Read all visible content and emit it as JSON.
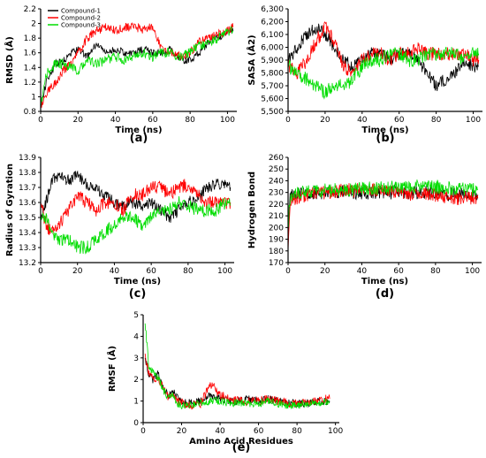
{
  "colors": {
    "compound1": "#000000",
    "compound2": "#ff0000",
    "compound3": "#00dd00"
  },
  "chart_data": [
    {
      "id": "a",
      "type": "line",
      "panel_label": "(a)",
      "xlabel": "Time (ns)",
      "ylabel": "RMSD (Å)",
      "xlim": [
        0,
        105
      ],
      "ylim": [
        0.8,
        2.2
      ],
      "xticks": [
        0,
        20,
        40,
        60,
        80,
        100
      ],
      "yticks": [
        0.8,
        1,
        1.2,
        1.4,
        1.6,
        1.8,
        2,
        2.2
      ],
      "ytick_labels": [
        "0.8",
        "1",
        "1.2",
        "1.4",
        "1.6",
        "1.8",
        "2",
        "2.2"
      ],
      "legend": "top-left",
      "grid": false,
      "noise": [
        0.05,
        0.06,
        0.07
      ],
      "series": [
        {
          "name": "Compound-1",
          "color": "#000000",
          "x": [
            0,
            3,
            8,
            12,
            16,
            20,
            25,
            30,
            35,
            40,
            45,
            50,
            55,
            60,
            65,
            70,
            75,
            80,
            85,
            90,
            95,
            100,
            103
          ],
          "y": [
            0.85,
            1.2,
            1.45,
            1.48,
            1.6,
            1.65,
            1.55,
            1.72,
            1.6,
            1.65,
            1.6,
            1.6,
            1.65,
            1.6,
            1.6,
            1.65,
            1.5,
            1.5,
            1.6,
            1.75,
            1.8,
            1.9,
            1.9
          ]
        },
        {
          "name": "Compound-2",
          "color": "#ff0000",
          "x": [
            0,
            3,
            8,
            12,
            16,
            20,
            25,
            30,
            35,
            40,
            45,
            50,
            55,
            60,
            65,
            70,
            75,
            80,
            85,
            90,
            95,
            100,
            103
          ],
          "y": [
            0.85,
            1.05,
            1.2,
            1.35,
            1.45,
            1.6,
            1.8,
            1.9,
            1.95,
            1.9,
            1.95,
            1.95,
            1.92,
            1.95,
            1.65,
            1.6,
            1.55,
            1.6,
            1.75,
            1.8,
            1.85,
            1.9,
            1.95
          ]
        },
        {
          "name": "Compound-3",
          "color": "#00dd00",
          "x": [
            0,
            3,
            8,
            12,
            16,
            20,
            25,
            30,
            35,
            40,
            45,
            50,
            55,
            60,
            65,
            70,
            75,
            80,
            85,
            90,
            95,
            100,
            103
          ],
          "y": [
            0.85,
            1.3,
            1.45,
            1.45,
            1.4,
            1.35,
            1.5,
            1.45,
            1.5,
            1.55,
            1.5,
            1.55,
            1.6,
            1.55,
            1.6,
            1.6,
            1.55,
            1.6,
            1.7,
            1.75,
            1.8,
            1.9,
            1.9
          ]
        }
      ]
    },
    {
      "id": "b",
      "type": "line",
      "panel_label": "(b)",
      "xlabel": "Time (ns)",
      "ylabel": "SASA (Å2)",
      "xlim": [
        0,
        105
      ],
      "ylim": [
        5500,
        6300
      ],
      "xticks": [
        0,
        20,
        40,
        60,
        80,
        100
      ],
      "yticks": [
        5500,
        5600,
        5700,
        5800,
        5900,
        6000,
        6100,
        6200,
        6300
      ],
      "ytick_labels": [
        "5,500",
        "5,600",
        "5,700",
        "5,800",
        "5,900",
        "6,000",
        "6,100",
        "6,200",
        "6,300"
      ],
      "grid": false,
      "noise": [
        50,
        55,
        55
      ],
      "series": [
        {
          "name": "Compound-1",
          "color": "#000000",
          "x": [
            0,
            5,
            10,
            15,
            20,
            25,
            30,
            35,
            40,
            45,
            50,
            55,
            60,
            65,
            70,
            75,
            80,
            85,
            90,
            95,
            100,
            103
          ],
          "y": [
            5900,
            6000,
            6100,
            6150,
            6100,
            6000,
            5900,
            5850,
            5900,
            5950,
            5950,
            5900,
            5950,
            5950,
            5900,
            5800,
            5700,
            5750,
            5800,
            5900,
            5850,
            5850
          ]
        },
        {
          "name": "Compound-2",
          "color": "#ff0000",
          "x": [
            0,
            5,
            10,
            15,
            20,
            25,
            30,
            35,
            40,
            45,
            50,
            55,
            60,
            65,
            70,
            75,
            80,
            85,
            90,
            95,
            100,
            103
          ],
          "y": [
            5850,
            5800,
            5900,
            6050,
            6150,
            6050,
            5850,
            5800,
            5900,
            5950,
            5950,
            5900,
            5950,
            5950,
            6000,
            5950,
            5950,
            5950,
            5950,
            5950,
            5900,
            5900
          ]
        },
        {
          "name": "Compound-3",
          "color": "#00dd00",
          "x": [
            0,
            5,
            10,
            15,
            20,
            25,
            30,
            35,
            40,
            45,
            50,
            55,
            60,
            65,
            70,
            75,
            80,
            85,
            90,
            95,
            100,
            103
          ],
          "y": [
            5850,
            5800,
            5750,
            5700,
            5650,
            5700,
            5700,
            5750,
            5850,
            5900,
            5900,
            5950,
            5950,
            5900,
            5900,
            5950,
            5950,
            5950,
            5950,
            5900,
            5950,
            5950
          ]
        }
      ]
    },
    {
      "id": "c",
      "type": "line",
      "panel_label": "(c)",
      "xlabel": "Time (ns)",
      "ylabel": "Radius of Gyration",
      "xlim": [
        0,
        105
      ],
      "ylim": [
        13.2,
        13.9
      ],
      "xticks": [
        0,
        20,
        40,
        60,
        80,
        100
      ],
      "yticks": [
        13.2,
        13.3,
        13.4,
        13.5,
        13.6,
        13.7,
        13.8,
        13.9
      ],
      "ytick_labels": [
        "13.2",
        "13.3",
        "13.4",
        "13.5",
        "13.6",
        "13.7",
        "13.8",
        "13.9"
      ],
      "grid": false,
      "noise": [
        0.04,
        0.045,
        0.045
      ],
      "series": [
        {
          "name": "Compound-1",
          "color": "#000000",
          "x": [
            0,
            3,
            6,
            10,
            15,
            20,
            25,
            30,
            35,
            40,
            45,
            50,
            55,
            60,
            65,
            70,
            75,
            80,
            85,
            90,
            95,
            100,
            103
          ],
          "y": [
            13.5,
            13.6,
            13.75,
            13.78,
            13.75,
            13.78,
            13.72,
            13.7,
            13.65,
            13.6,
            13.58,
            13.6,
            13.58,
            13.6,
            13.55,
            13.5,
            13.55,
            13.6,
            13.62,
            13.7,
            13.72,
            13.72,
            13.7
          ]
        },
        {
          "name": "Compound-2",
          "color": "#ff0000",
          "x": [
            0,
            3,
            6,
            10,
            15,
            20,
            25,
            30,
            35,
            40,
            45,
            50,
            55,
            60,
            65,
            70,
            75,
            80,
            85,
            90,
            95,
            100,
            103
          ],
          "y": [
            13.6,
            13.45,
            13.4,
            13.45,
            13.55,
            13.65,
            13.6,
            13.55,
            13.6,
            13.6,
            13.55,
            13.65,
            13.65,
            13.7,
            13.7,
            13.65,
            13.7,
            13.72,
            13.65,
            13.6,
            13.6,
            13.6,
            13.6
          ]
        },
        {
          "name": "Compound-3",
          "color": "#00dd00",
          "x": [
            0,
            3,
            6,
            10,
            15,
            20,
            25,
            30,
            35,
            40,
            45,
            50,
            55,
            60,
            65,
            70,
            75,
            80,
            85,
            90,
            95,
            100,
            103
          ],
          "y": [
            13.5,
            13.5,
            13.4,
            13.35,
            13.35,
            13.3,
            13.3,
            13.35,
            13.4,
            13.45,
            13.5,
            13.5,
            13.45,
            13.5,
            13.55,
            13.55,
            13.6,
            13.58,
            13.55,
            13.55,
            13.55,
            13.6,
            13.58
          ]
        }
      ]
    },
    {
      "id": "d",
      "type": "line",
      "panel_label": "(d)",
      "xlabel": "Time (ns)",
      "ylabel": "Hydrogen Bond",
      "xlim": [
        0,
        105
      ],
      "ylim": [
        170,
        260
      ],
      "xticks": [
        0,
        20,
        40,
        60,
        80,
        100
      ],
      "yticks": [
        170,
        180,
        190,
        200,
        210,
        220,
        230,
        240,
        250,
        260
      ],
      "ytick_labels": [
        "170",
        "180",
        "190",
        "200",
        "210",
        "220",
        "230",
        "240",
        "250",
        "260"
      ],
      "grid": false,
      "noise": [
        6,
        6,
        6
      ],
      "series": [
        {
          "name": "Compound-1",
          "color": "#000000",
          "x": [
            0,
            1,
            3,
            10,
            20,
            30,
            40,
            50,
            60,
            70,
            80,
            90,
            100,
            103
          ],
          "y": [
            185,
            225,
            228,
            230,
            230,
            230,
            230,
            230,
            230,
            230,
            230,
            228,
            228,
            228
          ]
        },
        {
          "name": "Compound-2",
          "color": "#ff0000",
          "x": [
            0,
            1,
            3,
            10,
            20,
            30,
            40,
            50,
            60,
            70,
            80,
            90,
            100,
            103
          ],
          "y": [
            180,
            222,
            225,
            228,
            230,
            232,
            232,
            232,
            230,
            228,
            228,
            225,
            225,
            225
          ]
        },
        {
          "name": "Compound-3",
          "color": "#00dd00",
          "x": [
            0,
            1,
            3,
            10,
            20,
            30,
            40,
            50,
            60,
            70,
            80,
            90,
            100,
            103
          ],
          "y": [
            200,
            225,
            228,
            230,
            232,
            232,
            233,
            234,
            235,
            235,
            235,
            233,
            232,
            232
          ]
        }
      ]
    },
    {
      "id": "e",
      "type": "line",
      "panel_label": "(e)",
      "xlabel": "Amino Acid Residues",
      "ylabel": "RMSF (Å)",
      "xlim": [
        0,
        102
      ],
      "ylim": [
        0,
        5
      ],
      "xticks": [
        0,
        20,
        40,
        60,
        80,
        100
      ],
      "yticks": [
        0,
        1,
        2,
        3,
        4,
        5
      ],
      "ytick_labels": [
        "0",
        "1",
        "2",
        "3",
        "4",
        "5"
      ],
      "grid": false,
      "noise": [
        0.18,
        0.2,
        0.18
      ],
      "series": [
        {
          "name": "Compound-1",
          "color": "#000000",
          "x": [
            1,
            3,
            5,
            8,
            10,
            13,
            15,
            18,
            20,
            25,
            30,
            35,
            40,
            45,
            50,
            55,
            60,
            65,
            70,
            75,
            80,
            85,
            90,
            95,
            97
          ],
          "y": [
            3.0,
            2.2,
            2.0,
            2.3,
            1.8,
            1.2,
            1.5,
            1.2,
            1.0,
            0.9,
            1.0,
            1.3,
            1.1,
            1.0,
            1.0,
            1.1,
            1.0,
            1.1,
            1.0,
            0.9,
            0.9,
            0.9,
            1.0,
            1.0,
            1.0
          ]
        },
        {
          "name": "Compound-2",
          "color": "#ff0000",
          "x": [
            1,
            3,
            5,
            8,
            10,
            13,
            15,
            18,
            20,
            25,
            30,
            35,
            40,
            45,
            50,
            55,
            60,
            65,
            70,
            75,
            80,
            85,
            90,
            95,
            97
          ],
          "y": [
            3.2,
            2.3,
            2.0,
            2.0,
            1.7,
            1.2,
            1.4,
            1.0,
            0.9,
            0.8,
            0.9,
            1.8,
            1.3,
            1.1,
            1.0,
            1.0,
            1.0,
            1.1,
            1.0,
            0.9,
            0.9,
            1.0,
            1.0,
            1.1,
            1.1
          ]
        },
        {
          "name": "Compound-3",
          "color": "#00dd00",
          "x": [
            1,
            3,
            5,
            8,
            10,
            13,
            15,
            18,
            20,
            25,
            30,
            35,
            40,
            45,
            50,
            55,
            60,
            65,
            70,
            75,
            80,
            85,
            90,
            95,
            97
          ],
          "y": [
            4.6,
            2.6,
            2.3,
            2.0,
            1.6,
            1.1,
            1.3,
            0.9,
            0.8,
            0.8,
            0.9,
            1.0,
            1.0,
            0.9,
            0.9,
            0.9,
            0.9,
            1.0,
            0.9,
            0.8,
            0.8,
            0.9,
            0.9,
            1.0,
            0.9
          ]
        }
      ]
    }
  ]
}
